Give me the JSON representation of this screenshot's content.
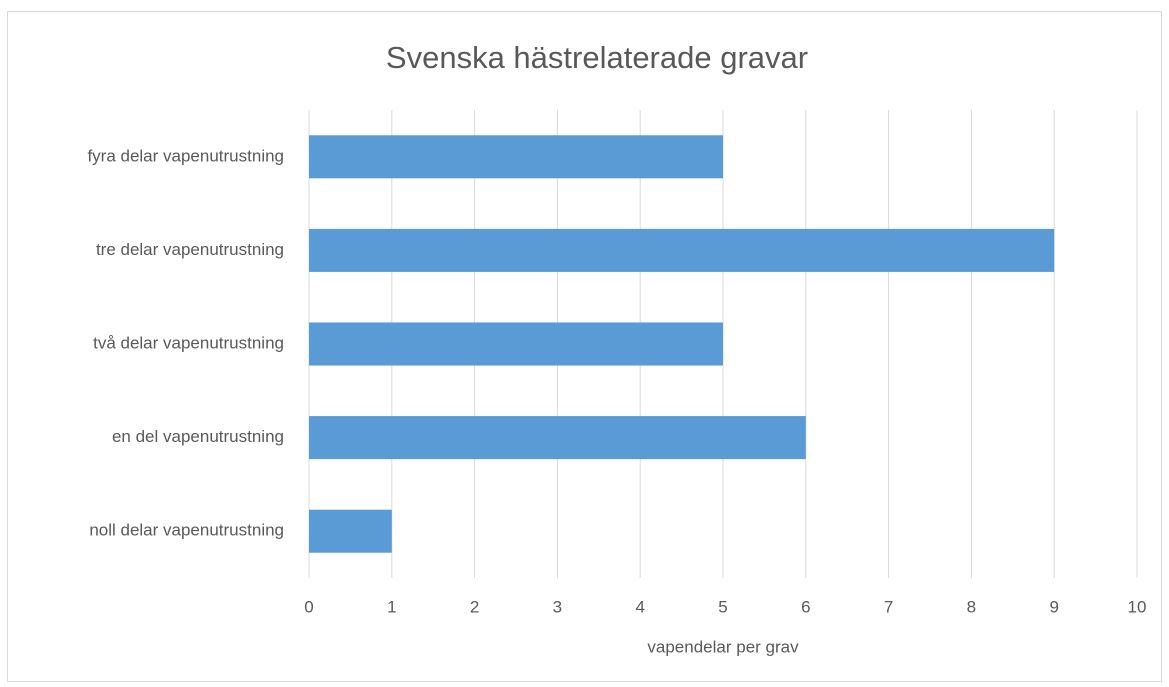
{
  "chart_data": {
    "type": "bar",
    "orientation": "horizontal",
    "title": "Svenska hästrelaterade gravar",
    "xlabel": "vapendelar per grav",
    "categories": [
      "fyra delar vapenutrustning",
      "tre delar vapenutrustning",
      "två delar vapenutrustning",
      "en del vapenutrustning",
      "noll delar vapenutrustning"
    ],
    "values": [
      5,
      9,
      5,
      6,
      1
    ],
    "color": "#5b9bd5",
    "xlim": [
      0,
      10
    ],
    "xticks": [
      0,
      1,
      2,
      3,
      4,
      5,
      6,
      7,
      8,
      9,
      10
    ],
    "grid": true
  }
}
